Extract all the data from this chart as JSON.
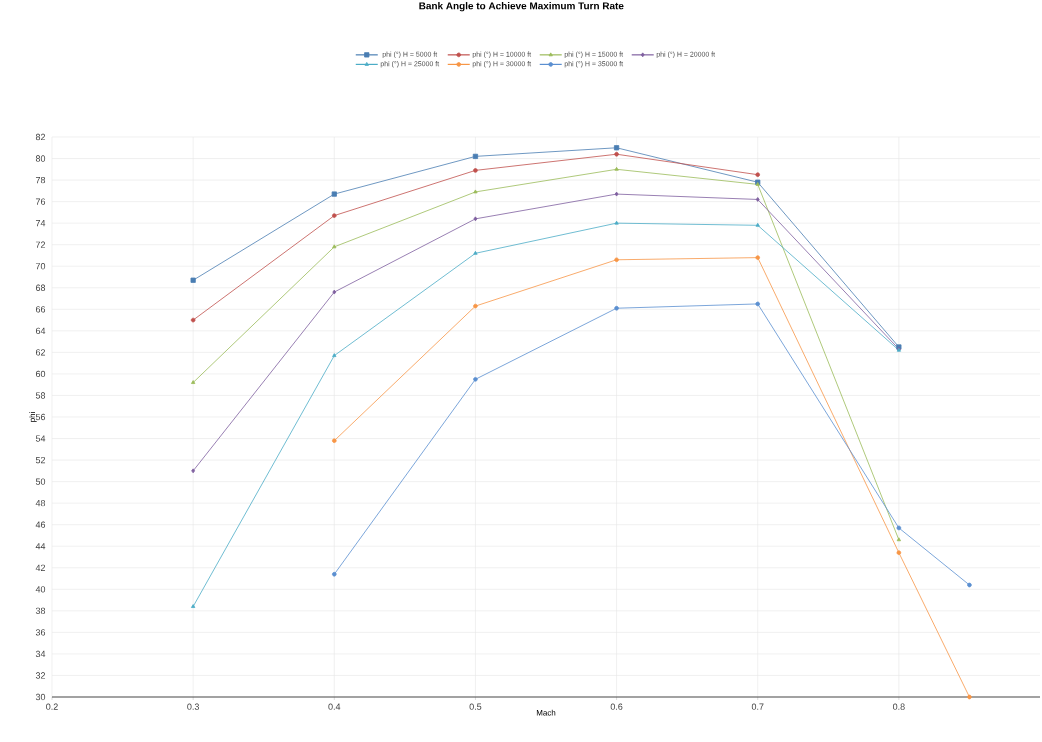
{
  "chart_data": {
    "type": "line",
    "title": "Bank Angle to Achieve Maximum Turn Rate",
    "xlabel": "Mach",
    "ylabel": "phi",
    "xlim": [
      0.2,
      0.9
    ],
    "xticks": [
      0.2,
      0.3,
      0.4,
      0.5,
      0.6,
      0.7,
      0.8
    ],
    "ylim": [
      30,
      82
    ],
    "yticks": [
      30,
      32,
      34,
      36,
      38,
      40,
      42,
      44,
      46,
      48,
      50,
      52,
      54,
      56,
      58,
      60,
      62,
      64,
      66,
      68,
      70,
      72,
      74,
      76,
      78,
      80,
      82
    ],
    "grid": true,
    "legend": "top",
    "line_style": "solid",
    "series": [
      {
        "name": "phi (°) H = 5000 ft",
        "color": "#4a7eb3",
        "marker": "square",
        "x": [
          0.3,
          0.4,
          0.5,
          0.6,
          0.7,
          0.8
        ],
        "values": [
          68.7,
          76.7,
          80.2,
          81.0,
          77.8,
          62.5
        ]
      },
      {
        "name": "phi (°) H = 10000 ft",
        "color": "#c0504d",
        "marker": "circle",
        "x": [
          0.3,
          0.4,
          0.5,
          0.6,
          0.7
        ],
        "values": [
          65.0,
          74.7,
          78.9,
          80.4,
          78.5
        ]
      },
      {
        "name": "phi (°) H = 15000 ft",
        "color": "#9bbb59",
        "marker": "triangle",
        "x": [
          0.3,
          0.4,
          0.5,
          0.6,
          0.7,
          0.8
        ],
        "values": [
          59.2,
          71.8,
          76.9,
          79.0,
          77.6,
          44.6
        ]
      },
      {
        "name": "phi (°) H = 20000 ft",
        "color": "#7f5f9f",
        "marker": "diamond",
        "x": [
          0.3,
          0.4,
          0.5,
          0.6,
          0.7,
          0.8
        ],
        "values": [
          51.0,
          67.6,
          74.4,
          76.7,
          76.2,
          62.3
        ]
      },
      {
        "name": "phi (°) H = 25000 ft",
        "color": "#4bacc6",
        "marker": "triangle",
        "x": [
          0.3,
          0.4,
          0.5,
          0.6,
          0.7,
          0.8
        ],
        "values": [
          38.4,
          61.7,
          71.2,
          74.0,
          73.8,
          62.2
        ]
      },
      {
        "name": "phi (°) H = 30000 ft",
        "color": "#f79646",
        "marker": "circle",
        "x": [
          0.4,
          0.5,
          0.6,
          0.7,
          0.8,
          0.85
        ],
        "values": [
          53.8,
          66.3,
          70.6,
          70.8,
          43.4,
          30.0
        ]
      },
      {
        "name": "phi (°) H = 35000 ft",
        "color": "#5b8fd0",
        "marker": "circle",
        "x": [
          0.4,
          0.5,
          0.6,
          0.7,
          0.8,
          0.85
        ],
        "values": [
          41.4,
          59.5,
          66.1,
          66.5,
          45.7,
          40.4
        ]
      }
    ]
  }
}
